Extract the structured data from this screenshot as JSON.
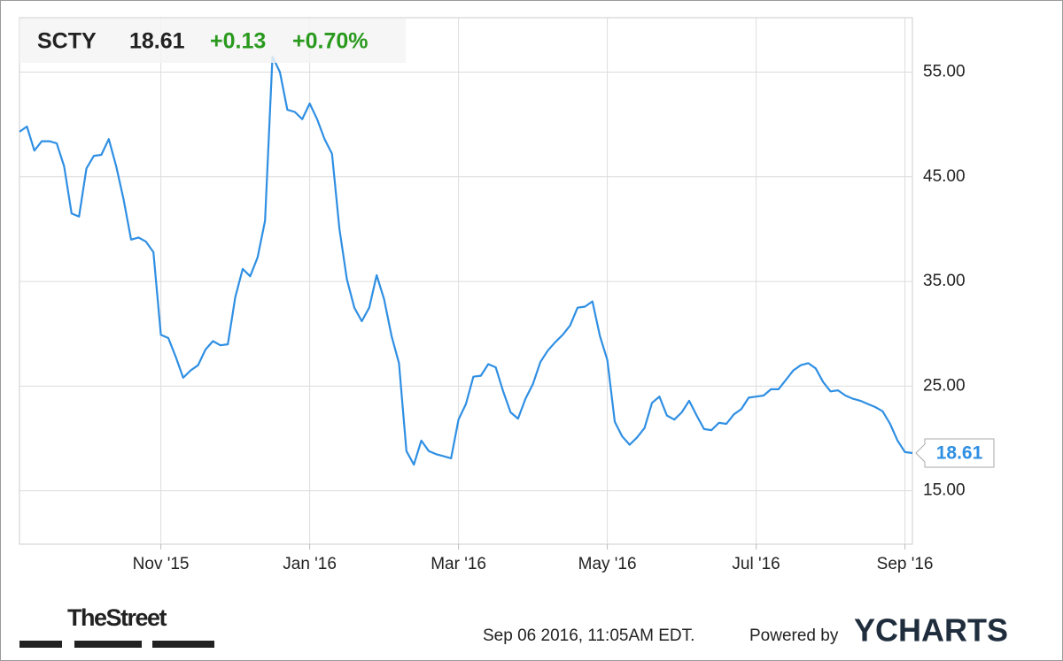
{
  "chart_data": {
    "type": "line",
    "quote": {
      "price": 18.61,
      "change": "+0.13",
      "change_percent": "+0.70%"
    },
    "categories": [
      null,
      null,
      null,
      null,
      null,
      null,
      null,
      null,
      null,
      null,
      null,
      null,
      null,
      null,
      null,
      null,
      null,
      null,
      null,
      "Nov '15",
      null,
      null,
      null,
      null,
      null,
      null,
      null,
      null,
      null,
      null,
      null,
      null,
      null,
      null,
      null,
      null,
      null,
      null,
      null,
      "Jan '16",
      null,
      null,
      null,
      null,
      null,
      null,
      null,
      null,
      null,
      null,
      null,
      null,
      null,
      null,
      null,
      null,
      null,
      null,
      null,
      "Mar '16",
      null,
      null,
      null,
      null,
      null,
      null,
      null,
      null,
      null,
      null,
      null,
      null,
      null,
      null,
      null,
      null,
      null,
      null,
      null,
      "May '16",
      null,
      null,
      null,
      null,
      null,
      null,
      null,
      null,
      null,
      null,
      null,
      null,
      null,
      null,
      null,
      null,
      null,
      null,
      null,
      "Jul '16",
      null,
      null,
      null,
      null,
      null,
      null,
      null,
      null,
      null,
      null,
      null,
      null,
      null,
      null,
      null,
      null,
      null,
      null,
      null,
      "Sep '16",
      null
    ],
    "series": [
      {
        "name": "SCTY",
        "color": "#2f8fe3",
        "values": [
          49.3,
          49.8,
          47.5,
          48.4,
          48.4,
          48.2,
          46,
          41.5,
          41.2,
          45.8,
          47,
          47.1,
          48.6,
          46,
          42.8,
          39,
          39.2,
          38.8,
          37.8,
          29.9,
          29.6,
          27.8,
          25.8,
          26.5,
          27,
          28.5,
          29.3,
          28.9,
          29,
          33.5,
          36.2,
          35.5,
          37.3,
          40.8,
          56.5,
          55,
          51.4,
          51.2,
          50.5,
          52,
          50.5,
          48.6,
          47.2,
          40,
          35.2,
          32.5,
          31.2,
          32.5,
          35.6,
          33.3,
          29.8,
          27.2,
          18.8,
          17.5,
          19.8,
          18.8,
          18.5,
          18.3,
          18.1,
          21.8,
          23.3,
          25.9,
          26,
          27.1,
          26.8,
          24.5,
          22.5,
          21.9,
          23.8,
          25.2,
          27.3,
          28.4,
          29.2,
          29.9,
          30.8,
          32.5,
          32.6,
          33.1,
          29.8,
          27.5,
          21.6,
          20.2,
          19.4,
          20.1,
          21,
          23.4,
          24,
          22.2,
          21.8,
          22.5,
          23.6,
          22.2,
          20.9,
          20.8,
          21.5,
          21.4,
          22.3,
          22.8,
          23.9,
          24,
          24.1,
          24.7,
          24.7,
          25.6,
          26.5,
          27,
          27.2,
          26.7,
          25.4,
          24.5,
          24.6,
          24.1,
          23.8,
          23.6,
          23.3,
          23,
          22.6,
          21.4,
          19.8,
          18.7,
          18.61
        ]
      }
    ],
    "ylim": [
      9.9,
      60.2
    ],
    "yticks": [
      {
        "value": 15,
        "label": "15.00"
      },
      {
        "value": 25,
        "label": "25.00"
      },
      {
        "value": 35,
        "label": "35.00"
      },
      {
        "value": 45,
        "label": "45.00"
      },
      {
        "value": 55,
        "label": "55.00"
      }
    ],
    "grid": true
  },
  "footer": {
    "publisher": "TheStreet",
    "timestamp": "Sep 06 2016, 11:05AM EDT.",
    "powered_by": "Powered by",
    "brand": "YCHARTS"
  }
}
